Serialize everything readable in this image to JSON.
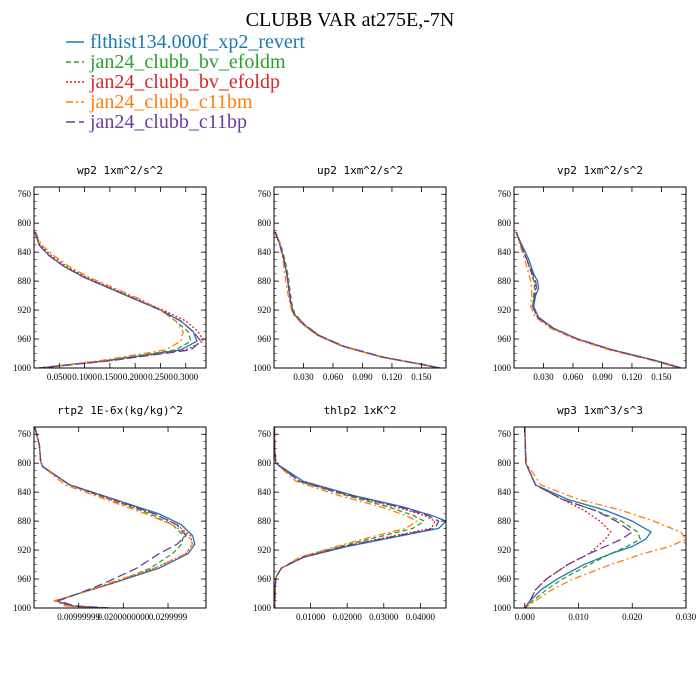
{
  "figure": {
    "title": "CLUBB VAR at275E,-7N",
    "legend": [
      {
        "label": "flthist134.000f_xp2_revert",
        "color": "#1f77b4",
        "dash": "solid"
      },
      {
        "label": "jan24_clubb_bv_efoldm",
        "color": "#2ca02c",
        "dash": "dashed"
      },
      {
        "label": "jan24_clubb_bv_efoldp",
        "color": "#d62728",
        "dash": "dotted"
      },
      {
        "label": "jan24_clubb_c11bm",
        "color": "#ff7f0e",
        "dash": "dashdot"
      },
      {
        "label": "jan24_clubb_c11bp",
        "color": "#6a3d9a",
        "dash": "longdash"
      }
    ]
  },
  "chart_data": [
    {
      "type": "line",
      "title": "wp2   1xm^2/s^2",
      "ylim": [
        1000,
        750
      ],
      "yticks": [
        "760",
        "800",
        "840",
        "880",
        "920",
        "960",
        "1000"
      ],
      "xlim": [
        0,
        0.34
      ],
      "xticks": [
        0.05,
        0.1,
        0.15,
        0.2,
        0.25,
        0.3
      ],
      "xticklabels": [
        "0.0500",
        "0.1000",
        "0.1500",
        "0.2000",
        "0.2500",
        "0.3000"
      ],
      "levels": [
        812,
        830,
        845,
        860,
        875,
        890,
        905,
        920,
        935,
        950,
        963,
        975,
        990,
        1000
      ],
      "series": [
        {
          "name": "flthist134.000f_xp2_revert",
          "values": [
            0.002,
            0.01,
            0.03,
            0.06,
            0.1,
            0.15,
            0.2,
            0.25,
            0.29,
            0.315,
            0.322,
            0.29,
            0.14,
            0.01
          ]
        },
        {
          "name": "jan24_clubb_bv_efoldm",
          "values": [
            0.002,
            0.01,
            0.03,
            0.06,
            0.1,
            0.15,
            0.2,
            0.25,
            0.28,
            0.305,
            0.31,
            0.28,
            0.14,
            0.01
          ]
        },
        {
          "name": "jan24_clubb_bv_efoldp",
          "values": [
            0.002,
            0.012,
            0.035,
            0.065,
            0.105,
            0.155,
            0.205,
            0.255,
            0.3,
            0.325,
            0.335,
            0.3,
            0.15,
            0.01
          ]
        },
        {
          "name": "jan24_clubb_c11bm",
          "values": [
            0.003,
            0.015,
            0.04,
            0.07,
            0.11,
            0.16,
            0.21,
            0.25,
            0.28,
            0.295,
            0.29,
            0.26,
            0.13,
            0.01
          ]
        },
        {
          "name": "jan24_clubb_c11bp",
          "values": [
            0.002,
            0.01,
            0.03,
            0.06,
            0.1,
            0.15,
            0.2,
            0.25,
            0.29,
            0.315,
            0.33,
            0.31,
            0.15,
            0.01
          ]
        }
      ]
    },
    {
      "type": "line",
      "title": "up2   1xm^2/s^2",
      "ylim": [
        1000,
        750
      ],
      "yticks": [
        "760",
        "800",
        "840",
        "880",
        "920",
        "960",
        "1000"
      ],
      "xlim": [
        0,
        0.175
      ],
      "xticks": [
        0.03,
        0.06,
        0.09,
        0.12,
        0.15
      ],
      "xticklabels": [
        "0.030",
        "0.060",
        "0.090",
        "0.120",
        "0.150"
      ],
      "levels": [
        812,
        830,
        850,
        870,
        890,
        910,
        925,
        940,
        955,
        970,
        985,
        995,
        1000
      ],
      "series": [
        {
          "name": "flthist134.000f_xp2_revert",
          "values": [
            0.001,
            0.006,
            0.01,
            0.013,
            0.015,
            0.017,
            0.02,
            0.03,
            0.045,
            0.07,
            0.11,
            0.15,
            0.168
          ]
        },
        {
          "name": "jan24_clubb_bv_efoldm",
          "values": [
            0.001,
            0.007,
            0.011,
            0.014,
            0.016,
            0.018,
            0.021,
            0.031,
            0.046,
            0.071,
            0.111,
            0.151,
            0.169
          ]
        },
        {
          "name": "jan24_clubb_bv_efoldp",
          "values": [
            0.001,
            0.006,
            0.01,
            0.013,
            0.015,
            0.017,
            0.02,
            0.03,
            0.045,
            0.07,
            0.11,
            0.15,
            0.168
          ]
        },
        {
          "name": "jan24_clubb_c11bm",
          "values": [
            0.002,
            0.006,
            0.009,
            0.011,
            0.013,
            0.016,
            0.019,
            0.029,
            0.044,
            0.069,
            0.109,
            0.149,
            0.167
          ]
        },
        {
          "name": "jan24_clubb_c11bp",
          "values": [
            0.001,
            0.006,
            0.01,
            0.013,
            0.015,
            0.017,
            0.02,
            0.031,
            0.046,
            0.071,
            0.111,
            0.151,
            0.169
          ]
        }
      ]
    },
    {
      "type": "line",
      "title": "vp2   1xm^2/s^2",
      "ylim": [
        1000,
        750
      ],
      "yticks": [
        "760",
        "800",
        "840",
        "880",
        "920",
        "960",
        "1000"
      ],
      "xlim": [
        0,
        0.175
      ],
      "xticks": [
        0.03,
        0.06,
        0.09,
        0.12,
        0.15
      ],
      "xticklabels": [
        "0.030",
        "0.060",
        "0.090",
        "0.120",
        "0.150"
      ],
      "levels": [
        812,
        830,
        850,
        870,
        880,
        890,
        900,
        915,
        930,
        945,
        960,
        975,
        990,
        1000
      ],
      "series": [
        {
          "name": "flthist134.000f_xp2_revert",
          "values": [
            0.002,
            0.008,
            0.015,
            0.02,
            0.024,
            0.025,
            0.022,
            0.02,
            0.025,
            0.04,
            0.065,
            0.1,
            0.145,
            0.17
          ]
        },
        {
          "name": "jan24_clubb_bv_efoldm",
          "values": [
            0.002,
            0.007,
            0.013,
            0.018,
            0.02,
            0.021,
            0.02,
            0.019,
            0.024,
            0.039,
            0.064,
            0.099,
            0.144,
            0.169
          ]
        },
        {
          "name": "jan24_clubb_bv_efoldp",
          "values": [
            0.002,
            0.007,
            0.013,
            0.018,
            0.021,
            0.022,
            0.021,
            0.019,
            0.024,
            0.039,
            0.064,
            0.099,
            0.144,
            0.169
          ]
        },
        {
          "name": "jan24_clubb_c11bm",
          "values": [
            0.003,
            0.006,
            0.011,
            0.015,
            0.017,
            0.018,
            0.018,
            0.017,
            0.022,
            0.037,
            0.062,
            0.097,
            0.142,
            0.167
          ]
        },
        {
          "name": "jan24_clubb_c11bp",
          "values": [
            0.002,
            0.007,
            0.013,
            0.019,
            0.022,
            0.023,
            0.021,
            0.019,
            0.024,
            0.04,
            0.065,
            0.1,
            0.145,
            0.17
          ]
        }
      ]
    },
    {
      "type": "line",
      "title": "rtp2   1E-6x(kg/kg)^2",
      "ylim": [
        1000,
        750
      ],
      "yticks": [
        "760",
        "800",
        "840",
        "880",
        "920",
        "960",
        "1000"
      ],
      "xlim": [
        0,
        0.0385
      ],
      "xticks": [
        0.01,
        0.02,
        0.03
      ],
      "xticklabels": [
        "0.00999999",
        "0.0200000000",
        "0.0299999"
      ],
      "levels": [
        750,
        775,
        798,
        805,
        830,
        850,
        870,
        885,
        900,
        912,
        925,
        945,
        965,
        980,
        990,
        997,
        1000
      ],
      "series": [
        {
          "name": "flthist134.000f_xp2_revert",
          "values": [
            0.0002,
            0.0012,
            0.0015,
            0.002,
            0.008,
            0.018,
            0.028,
            0.033,
            0.0355,
            0.036,
            0.0345,
            0.028,
            0.018,
            0.01,
            0.005,
            0.008,
            0.016
          ]
        },
        {
          "name": "jan24_clubb_bv_efoldm",
          "values": [
            0.0002,
            0.0012,
            0.0015,
            0.002,
            0.008,
            0.017,
            0.026,
            0.031,
            0.0335,
            0.033,
            0.031,
            0.026,
            0.018,
            0.01,
            0.005,
            0.008,
            0.016
          ]
        },
        {
          "name": "jan24_clubb_bv_efoldp",
          "values": [
            0.0002,
            0.0012,
            0.0015,
            0.002,
            0.008,
            0.017,
            0.027,
            0.032,
            0.035,
            0.0355,
            0.034,
            0.027,
            0.018,
            0.01,
            0.005,
            0.008,
            0.016
          ]
        },
        {
          "name": "jan24_clubb_c11bm",
          "values": [
            0.0002,
            0.0012,
            0.0015,
            0.002,
            0.007,
            0.016,
            0.025,
            0.031,
            0.0345,
            0.0355,
            0.034,
            0.027,
            0.017,
            0.01,
            0.0045,
            0.007,
            0.015
          ]
        },
        {
          "name": "jan24_clubb_c11bp",
          "values": [
            0.0002,
            0.0012,
            0.0015,
            0.002,
            0.008,
            0.018,
            0.027,
            0.032,
            0.034,
            0.032,
            0.028,
            0.023,
            0.016,
            0.01,
            0.0055,
            0.009,
            0.017
          ]
        }
      ]
    },
    {
      "type": "line",
      "title": "thlp2   1xK^2",
      "ylim": [
        1000,
        750
      ],
      "yticks": [
        "760",
        "800",
        "840",
        "880",
        "920",
        "960",
        "1000"
      ],
      "xlim": [
        0,
        0.047
      ],
      "xticks": [
        0.01,
        0.02,
        0.03,
        0.04
      ],
      "xticklabels": [
        "0.01000",
        "0.02000",
        "0.03000",
        "0.04000"
      ],
      "levels": [
        750,
        780,
        800,
        825,
        845,
        860,
        872,
        880,
        890,
        900,
        915,
        930,
        945,
        958,
        975,
        1000
      ],
      "series": [
        {
          "name": "flthist134.000f_xp2_revert",
          "values": [
            0.0001,
            0.0002,
            0.0005,
            0.008,
            0.022,
            0.035,
            0.043,
            0.047,
            0.045,
            0.035,
            0.02,
            0.008,
            0.002,
            0.0005,
            0.0003,
            0.0002
          ]
        },
        {
          "name": "jan24_clubb_bv_efoldm",
          "values": [
            0.0001,
            0.0002,
            0.0005,
            0.007,
            0.02,
            0.031,
            0.038,
            0.041,
            0.038,
            0.03,
            0.018,
            0.007,
            0.002,
            0.0005,
            0.0003,
            0.0002
          ]
        },
        {
          "name": "jan24_clubb_bv_efoldp",
          "values": [
            0.0001,
            0.0002,
            0.0005,
            0.007,
            0.021,
            0.033,
            0.041,
            0.044,
            0.043,
            0.033,
            0.019,
            0.008,
            0.002,
            0.0005,
            0.0003,
            0.0002
          ]
        },
        {
          "name": "jan24_clubb_c11bm",
          "values": [
            0.0001,
            0.0002,
            0.0005,
            0.006,
            0.018,
            0.029,
            0.036,
            0.039,
            0.036,
            0.028,
            0.017,
            0.007,
            0.002,
            0.0005,
            0.0003,
            0.0002
          ]
        },
        {
          "name": "jan24_clubb_c11bp",
          "values": [
            0.0001,
            0.0002,
            0.0005,
            0.007,
            0.021,
            0.034,
            0.042,
            0.045,
            0.044,
            0.034,
            0.019,
            0.008,
            0.002,
            0.0005,
            0.0003,
            0.0002
          ]
        }
      ]
    },
    {
      "type": "line",
      "title": "wp3   1xm^3/s^3",
      "ylim": [
        1000,
        750
      ],
      "yticks": [
        "760",
        "800",
        "840",
        "880",
        "920",
        "960",
        "1000"
      ],
      "xlim": [
        -0.002,
        0.03
      ],
      "xticks": [
        0.0,
        0.01,
        0.02,
        0.03
      ],
      "xticklabels": [
        "0.000",
        "0.010",
        "0.020",
        "0.030"
      ],
      "levels": [
        750,
        800,
        830,
        850,
        865,
        880,
        895,
        905,
        915,
        925,
        940,
        960,
        975,
        990,
        1000
      ],
      "series": [
        {
          "name": "flthist134.000f_xp2_revert",
          "values": [
            0.0,
            0.0002,
            0.002,
            0.008,
            0.015,
            0.02,
            0.0235,
            0.0225,
            0.02,
            0.016,
            0.011,
            0.006,
            0.003,
            0.001,
            0.0
          ]
        },
        {
          "name": "jan24_clubb_bv_efoldm",
          "values": [
            0.0,
            0.0002,
            0.002,
            0.007,
            0.013,
            0.018,
            0.021,
            0.0215,
            0.019,
            0.016,
            0.012,
            0.007,
            0.004,
            0.0015,
            0.0
          ]
        },
        {
          "name": "jan24_clubb_bv_efoldp",
          "values": [
            0.0,
            0.0002,
            0.002,
            0.007,
            0.011,
            0.014,
            0.016,
            0.015,
            0.0135,
            0.012,
            0.008,
            0.004,
            0.002,
            0.001,
            0.0
          ]
        },
        {
          "name": "jan24_clubb_c11bm",
          "values": [
            0.0,
            0.0003,
            0.003,
            0.01,
            0.018,
            0.024,
            0.029,
            0.03,
            0.027,
            0.022,
            0.016,
            0.009,
            0.005,
            0.002,
            0.0
          ]
        },
        {
          "name": "jan24_clubb_c11bp",
          "values": [
            0.0,
            0.0002,
            0.002,
            0.007,
            0.013,
            0.017,
            0.02,
            0.018,
            0.015,
            0.012,
            0.008,
            0.004,
            0.002,
            0.001,
            0.0
          ]
        }
      ]
    }
  ]
}
